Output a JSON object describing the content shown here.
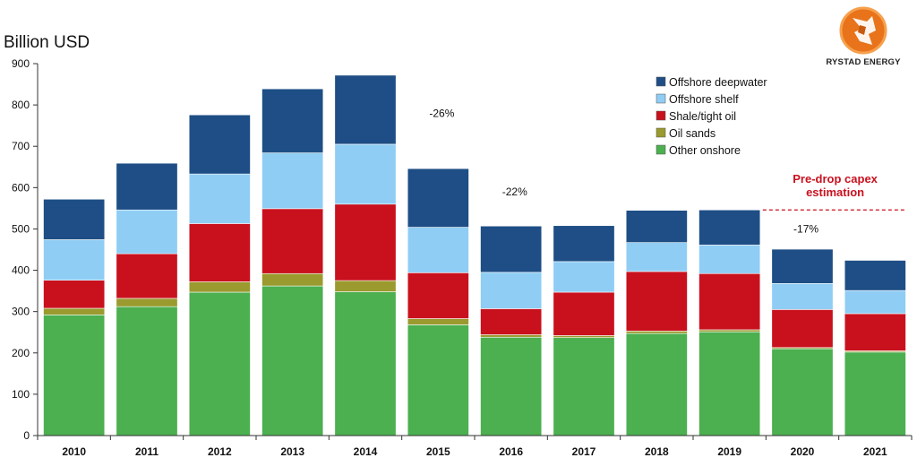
{
  "chart_data": {
    "type": "bar",
    "stacked": true,
    "ylabel": "Billion USD",
    "ylim": [
      0,
      900
    ],
    "yticks": [
      0,
      100,
      200,
      300,
      400,
      500,
      600,
      700,
      800,
      900
    ],
    "grid": false,
    "legend_position": "top-right",
    "categories": [
      "2010",
      "2011",
      "2012",
      "2013",
      "2014",
      "2015",
      "2016",
      "2017",
      "2018",
      "2019",
      "2020",
      "2021"
    ],
    "series": [
      {
        "name": "Other onshore",
        "color": "#4CAF50",
        "values": [
          292,
          312,
          347,
          362,
          348,
          268,
          238,
          237,
          247,
          251,
          210,
          202
        ]
      },
      {
        "name": "Oil sands",
        "color": "#9A9A2E",
        "values": [
          16,
          20,
          25,
          30,
          27,
          15,
          6,
          5,
          6,
          5,
          3,
          3
        ]
      },
      {
        "name": "Shale/tight oil",
        "color": "#C9111E",
        "values": [
          68,
          108,
          141,
          157,
          185,
          111,
          63,
          105,
          144,
          136,
          92,
          90
        ]
      },
      {
        "name": "Offshore shelf",
        "color": "#8FCDF4",
        "values": [
          98,
          106,
          120,
          135,
          145,
          110,
          88,
          74,
          70,
          69,
          63,
          56
        ]
      },
      {
        "name": "Offshore deepwater",
        "color": "#1E4E85",
        "values": [
          98,
          113,
          143,
          155,
          167,
          142,
          112,
          87,
          78,
          85,
          83,
          73
        ]
      }
    ],
    "annotations": [
      {
        "text": "-26%",
        "category": "2015",
        "y": 780
      },
      {
        "text": "-22%",
        "category": "2016",
        "y": 590
      },
      {
        "text": "-17%",
        "category": "2020",
        "y": 500
      },
      {
        "text": "Pre-drop capex estimation",
        "category": "2020",
        "y": 590,
        "color": "#C9111E",
        "dashed_line_value": 546
      }
    ]
  },
  "brand": {
    "name": "RYSTAD ENERGY"
  }
}
